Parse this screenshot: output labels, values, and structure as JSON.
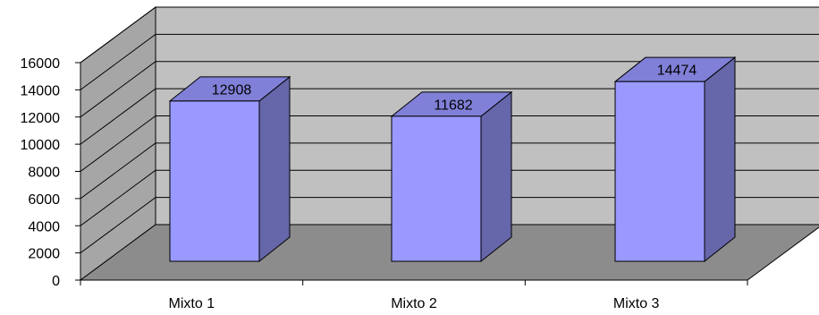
{
  "chart_data": {
    "type": "bar",
    "categories": [
      "Mixto 1",
      "Mixto 2",
      "Mixto 3"
    ],
    "values": [
      12908,
      11682,
      14474
    ],
    "data_labels": [
      "12908",
      "11682",
      "14474"
    ],
    "ylim": [
      0,
      16000
    ],
    "yticks": [
      0,
      2000,
      4000,
      6000,
      8000,
      10000,
      12000,
      14000,
      16000
    ],
    "ytick_labels": [
      "0",
      "2000",
      "4000",
      "6000",
      "8000",
      "10000",
      "12000",
      "14000",
      "16000"
    ],
    "grid": true,
    "style": "3d-column",
    "colors": {
      "bar_front": "#9999ff",
      "bar_side": "#6666aa",
      "bar_top": "#8080d8",
      "back_wall": "#c0c0c0",
      "side_wall": "#a6a6a6",
      "floor": "#8c8c8c"
    }
  }
}
